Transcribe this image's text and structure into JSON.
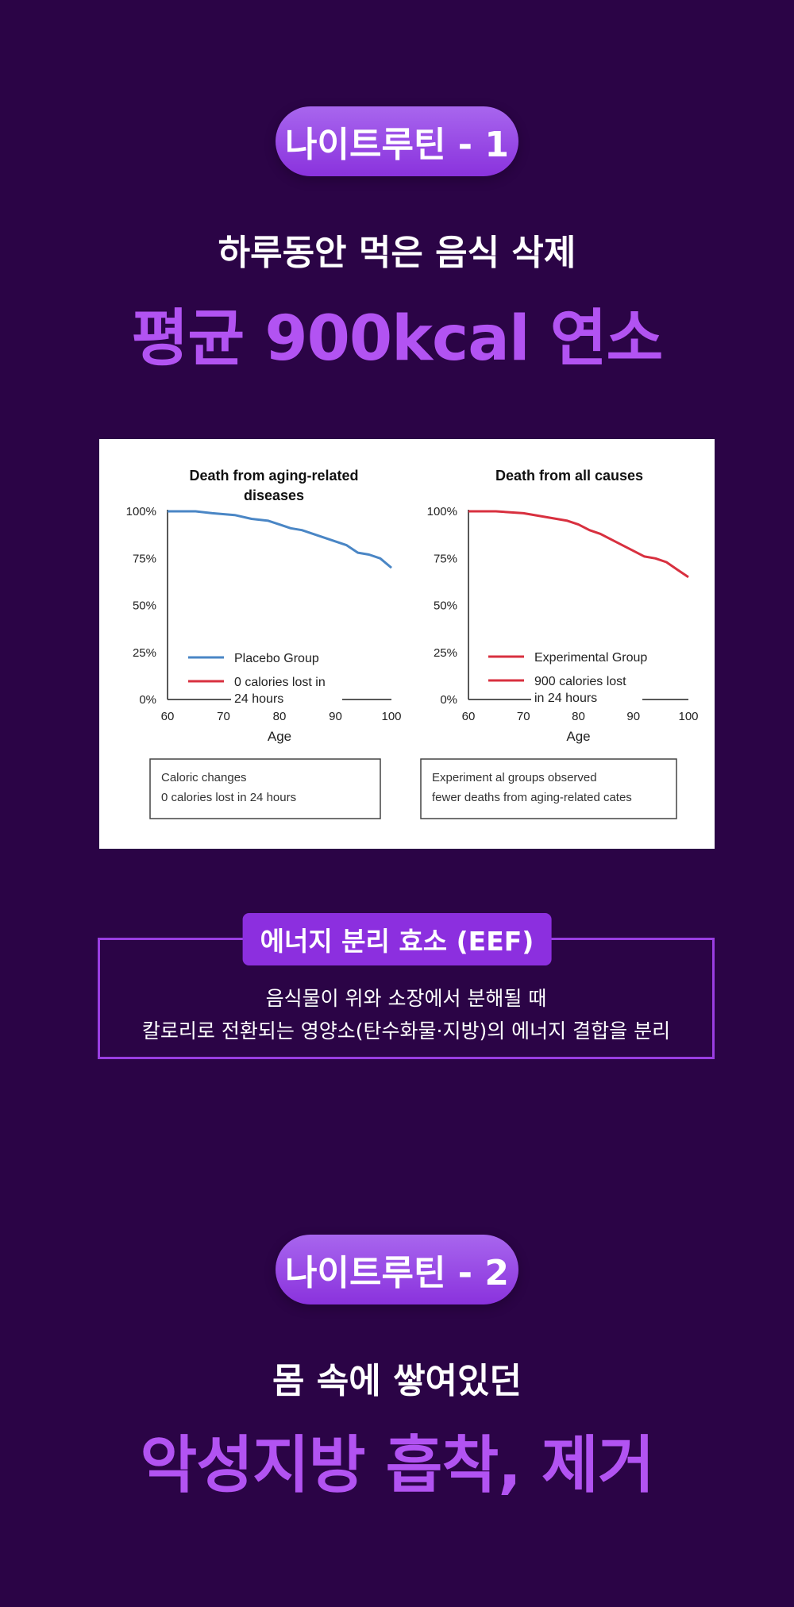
{
  "section1": {
    "pill": "나이트루틴 - 1",
    "subtitle": "하루동안 먹은 음식 삭제",
    "headline": "평균 900kcal 연소"
  },
  "chart_data": [
    {
      "type": "line",
      "title_lines": [
        "Death from aging-related",
        "diseases"
      ],
      "xlabel": "Age",
      "ylabel": "",
      "xlim": [
        60,
        100
      ],
      "ylim": [
        0,
        100
      ],
      "x_ticks": [
        "60",
        "70",
        "80",
        "90",
        "100"
      ],
      "y_ticks": [
        "0%",
        "25%",
        "50%",
        "75%",
        "100%"
      ],
      "legend": [
        "Placebo Group",
        "0 calories lost in",
        "24 hours"
      ],
      "legend_placement": "bottom-left",
      "series_color": "#4a86c5",
      "legend_line2_color": "#d8303f",
      "series": [
        {
          "x": [
            60,
            65,
            68,
            72,
            75,
            78,
            80,
            82,
            84,
            86,
            88,
            90,
            92,
            94,
            96,
            98,
            100
          ],
          "values": [
            100,
            100,
            99,
            98,
            96,
            95,
            93,
            91,
            90,
            88,
            86,
            84,
            82,
            78,
            77,
            75,
            70
          ]
        }
      ],
      "note": [
        "Caloric changes",
        "0 calories lost in 24 hours"
      ]
    },
    {
      "type": "line",
      "title_lines": [
        "Death from all causes"
      ],
      "xlabel": "Age",
      "ylabel": "",
      "xlim": [
        60,
        100
      ],
      "ylim": [
        0,
        100
      ],
      "x_ticks": [
        "60",
        "70",
        "80",
        "90",
        "100"
      ],
      "y_ticks": [
        "0%",
        "25%",
        "50%",
        "75%",
        "100%"
      ],
      "legend": [
        "Experimental Group",
        "900 calories lost",
        "in 24 hours"
      ],
      "legend_placement": "bottom-left",
      "series_color": "#d8303f",
      "legend_line2_color": "#d8303f",
      "series": [
        {
          "x": [
            60,
            65,
            70,
            74,
            78,
            80,
            82,
            84,
            86,
            88,
            90,
            92,
            94,
            96,
            98,
            100
          ],
          "values": [
            100,
            100,
            99,
            97,
            95,
            93,
            90,
            88,
            85,
            82,
            79,
            76,
            75,
            73,
            69,
            65
          ]
        }
      ],
      "note": [
        "Experiment al groups observed",
        "fewer deaths from aging-related cates"
      ]
    }
  ],
  "eef": {
    "label": "에너지 분리 효소 (EEF)",
    "line1": "음식물이 위와 소장에서 분해될 때",
    "line2": "칼로리로 전환되는 영양소(탄수화물·지방)의 에너지 결합을 분리"
  },
  "section2": {
    "pill": "나이트루틴 - 2",
    "subtitle": "몸 속에 쌓여있던",
    "headline": "악성지방 흡착, 제거"
  }
}
